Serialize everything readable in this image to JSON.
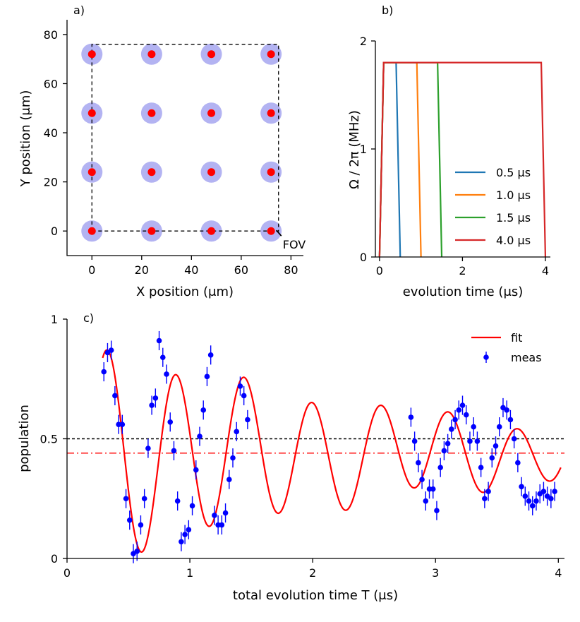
{
  "chart_data": [
    {
      "panel": "a)",
      "type": "scatter",
      "xlabel": "X position (μm)",
      "ylabel": "Y position (μm)",
      "xlim": [
        -10,
        85
      ],
      "ylim": [
        -10,
        86
      ],
      "xticks": [
        "0",
        "20",
        "40",
        "60",
        "80"
      ],
      "yticks": [
        "0",
        "20",
        "40",
        "60",
        "80"
      ],
      "x": [
        0,
        24,
        48,
        72
      ],
      "y": [
        0,
        24,
        48,
        72
      ],
      "fov_box": {
        "x": [
          0,
          75
        ],
        "y": [
          0,
          76
        ]
      },
      "fov_label": "FOV",
      "colors": {
        "atom": "#ff0000",
        "halo": "#b3b3f2",
        "box": "#000000"
      }
    },
    {
      "panel": "b)",
      "type": "line",
      "xlabel": "evolution time (μs)",
      "ylabel": "Ω / 2π (MHz)",
      "xlim": [
        -0.1,
        4.12
      ],
      "ylim": [
        0,
        2
      ],
      "xticks": [
        "0",
        "2",
        "4"
      ],
      "yticks": [
        "0",
        "1",
        "2"
      ],
      "plateau": 1.8,
      "legend_position": "lower-right",
      "series": [
        {
          "name": "0.5 μs",
          "color": "#1f77b4",
          "x": [
            0,
            0.1,
            0.4,
            0.5
          ],
          "values": [
            0,
            1.8,
            1.8,
            0
          ]
        },
        {
          "name": "1.0 μs",
          "color": "#ff7f0e",
          "x": [
            0,
            0.1,
            0.9,
            1.0
          ],
          "values": [
            0,
            1.8,
            1.8,
            0
          ]
        },
        {
          "name": "1.5 μs",
          "color": "#2ca02c",
          "x": [
            0,
            0.1,
            1.4,
            1.5
          ],
          "values": [
            0,
            1.8,
            1.8,
            0
          ]
        },
        {
          "name": "4.0 μs",
          "color": "#d62728",
          "x": [
            0,
            0.1,
            3.9,
            4.0
          ],
          "values": [
            0,
            1.8,
            1.8,
            0
          ]
        }
      ]
    },
    {
      "panel": "c)",
      "type": "line",
      "xlabel": "total evolution time T (μs)",
      "ylabel": "population",
      "xlim": [
        0,
        4.05
      ],
      "ylim": [
        0,
        1
      ],
      "xticks": [
        "0",
        "1",
        "2",
        "3",
        "4"
      ],
      "yticks": [
        "0",
        "0.5",
        "1"
      ],
      "legend_position": "top-right",
      "hlines": [
        {
          "value": 0.5,
          "style": "dashed",
          "color": "#000000"
        },
        {
          "value": 0.44,
          "style": "dashdot",
          "color": "#ff0000"
        }
      ],
      "fit": {
        "name": "fit",
        "color": "#ff0000",
        "model": "0.44 + A·exp(-T/2.8)·cos(2π·1.8·(T-0.33)) + 0.03·cos(2π·0.7·T)",
        "amplitude": 0.48,
        "decay_time": 2.8,
        "frequency": 1.8,
        "phase_time": 0.33,
        "offset": 0.44,
        "slow_amp": 0.03,
        "slow_freq": 0.7,
        "x_range": [
          0.29,
          4.02
        ]
      },
      "measurements": {
        "name": "meas",
        "color": "#0000ff",
        "x": [
          0.3,
          0.33,
          0.36,
          0.39,
          0.42,
          0.45,
          0.48,
          0.51,
          0.54,
          0.57,
          0.6,
          0.63,
          0.66,
          0.69,
          0.72,
          0.75,
          0.78,
          0.81,
          0.84,
          0.87,
          0.9,
          0.93,
          0.96,
          0.99,
          1.02,
          1.05,
          1.08,
          1.11,
          1.14,
          1.17,
          1.2,
          1.23,
          1.26,
          1.29,
          1.32,
          1.35,
          1.38,
          1.41,
          1.44,
          1.47,
          2.8,
          2.83,
          2.86,
          2.89,
          2.92,
          2.95,
          2.98,
          3.01,
          3.04,
          3.07,
          3.1,
          3.13,
          3.16,
          3.19,
          3.22,
          3.25,
          3.28,
          3.31,
          3.34,
          3.37,
          3.4,
          3.43,
          3.46,
          3.49,
          3.52,
          3.55,
          3.58,
          3.61,
          3.64,
          3.67,
          3.7,
          3.73,
          3.76,
          3.79,
          3.82,
          3.85,
          3.88,
          3.91,
          3.94,
          3.97
        ],
        "values": [
          0.78,
          0.86,
          0.87,
          0.68,
          0.56,
          0.56,
          0.25,
          0.16,
          0.02,
          0.03,
          0.14,
          0.25,
          0.46,
          0.64,
          0.67,
          0.91,
          0.84,
          0.77,
          0.57,
          0.45,
          0.24,
          0.07,
          0.1,
          0.12,
          0.22,
          0.37,
          0.51,
          0.62,
          0.76,
          0.85,
          0.18,
          0.14,
          0.14,
          0.19,
          0.33,
          0.42,
          0.53,
          0.72,
          0.68,
          0.58,
          0.59,
          0.49,
          0.4,
          0.33,
          0.24,
          0.29,
          0.29,
          0.2,
          0.38,
          0.45,
          0.48,
          0.54,
          0.58,
          0.62,
          0.64,
          0.6,
          0.49,
          0.55,
          0.49,
          0.38,
          0.25,
          0.28,
          0.42,
          0.47,
          0.55,
          0.63,
          0.62,
          0.58,
          0.5,
          0.4,
          0.3,
          0.26,
          0.24,
          0.22,
          0.24,
          0.27,
          0.28,
          0.26,
          0.25,
          0.28
        ],
        "error": 0.04
      }
    }
  ]
}
